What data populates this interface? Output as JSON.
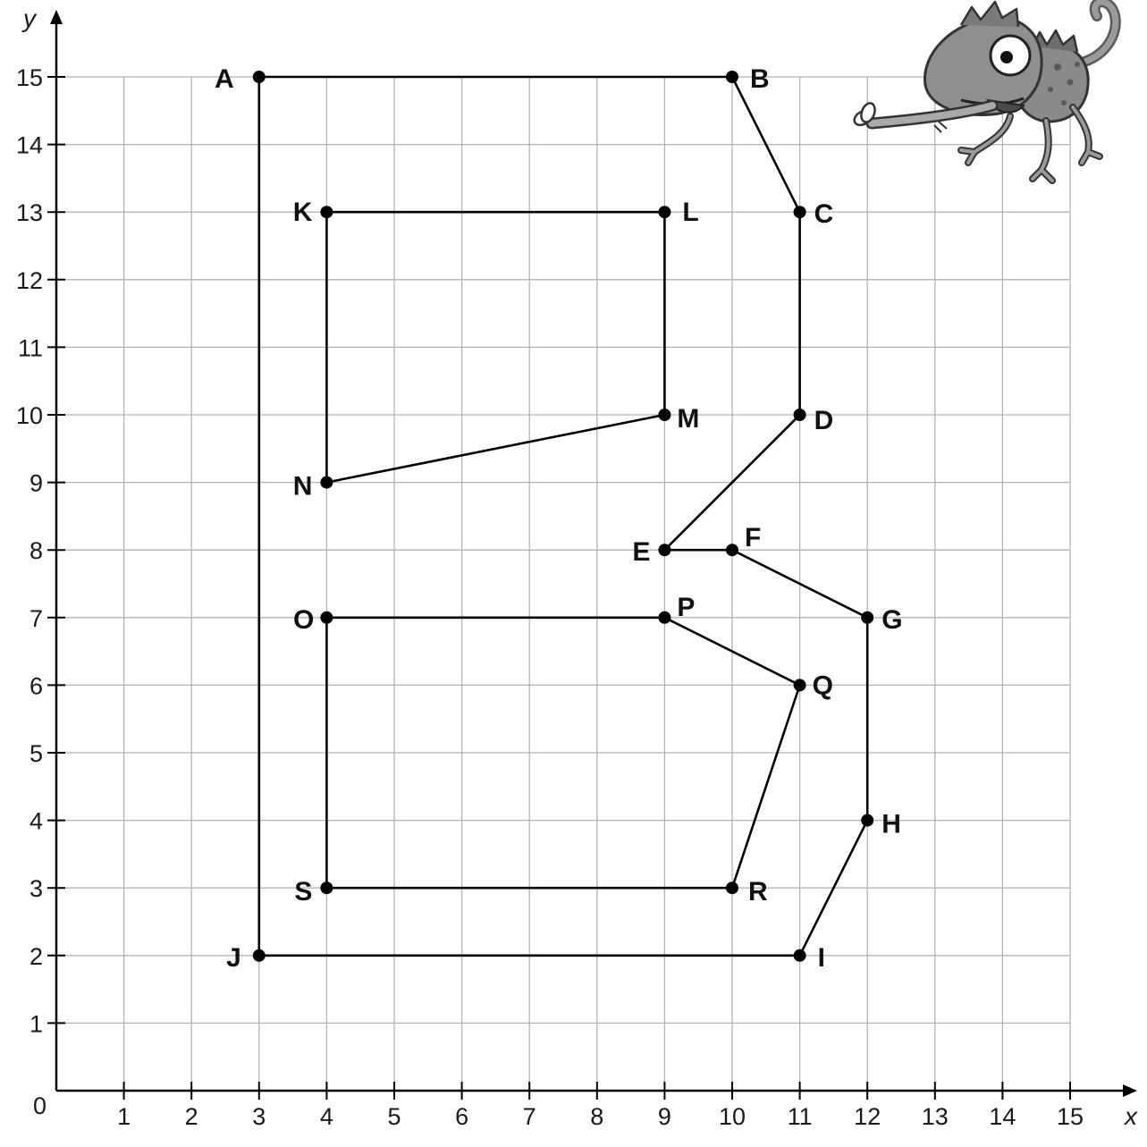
{
  "chart_data": {
    "type": "scatter",
    "xlabel": "x",
    "ylabel": "y",
    "origin_label": "0",
    "xlim": [
      0,
      15
    ],
    "ylim": [
      0,
      15
    ],
    "x_ticks": [
      "1",
      "2",
      "3",
      "4",
      "5",
      "6",
      "7",
      "8",
      "9",
      "10",
      "11",
      "12",
      "13",
      "14",
      "15"
    ],
    "y_ticks": [
      "1",
      "2",
      "3",
      "4",
      "5",
      "6",
      "7",
      "8",
      "9",
      "10",
      "11",
      "12",
      "13",
      "14",
      "15"
    ],
    "grid": true,
    "points": [
      {
        "name": "A",
        "x": 3,
        "y": 15
      },
      {
        "name": "B",
        "x": 10,
        "y": 15
      },
      {
        "name": "C",
        "x": 11,
        "y": 13
      },
      {
        "name": "D",
        "x": 11,
        "y": 10
      },
      {
        "name": "E",
        "x": 9,
        "y": 8
      },
      {
        "name": "F",
        "x": 10,
        "y": 8
      },
      {
        "name": "G",
        "x": 12,
        "y": 7
      },
      {
        "name": "H",
        "x": 12,
        "y": 4
      },
      {
        "name": "I",
        "x": 11,
        "y": 2
      },
      {
        "name": "J",
        "x": 3,
        "y": 2
      },
      {
        "name": "K",
        "x": 4,
        "y": 13
      },
      {
        "name": "L",
        "x": 9,
        "y": 13
      },
      {
        "name": "M",
        "x": 9,
        "y": 10
      },
      {
        "name": "N",
        "x": 4,
        "y": 9
      },
      {
        "name": "O",
        "x": 4,
        "y": 7
      },
      {
        "name": "P",
        "x": 9,
        "y": 7
      },
      {
        "name": "Q",
        "x": 11,
        "y": 6
      },
      {
        "name": "R",
        "x": 10,
        "y": 3
      },
      {
        "name": "S",
        "x": 4,
        "y": 3
      }
    ],
    "paths": [
      [
        "A",
        "B",
        "C",
        "D",
        "E",
        "F",
        "G",
        "H",
        "I",
        "J",
        "A"
      ],
      [
        "K",
        "L",
        "M",
        "N",
        "K"
      ],
      [
        "O",
        "P",
        "Q",
        "R",
        "S",
        "O"
      ]
    ]
  },
  "illustration": {
    "icon": "chameleon-icon"
  },
  "colors": {
    "grid": "#b3b3b3",
    "ink": "#000000",
    "chameleon_body": "#8a8a8a",
    "chameleon_dark": "#5a5a5a"
  }
}
